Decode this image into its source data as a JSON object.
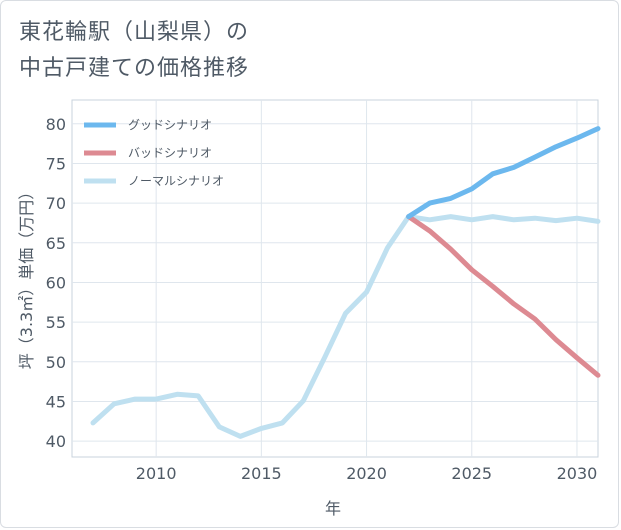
{
  "title": {
    "line1": "東花輪駅（山梨県）の",
    "line2": "中古戸建ての価格推移"
  },
  "chart_data": {
    "type": "line",
    "xlabel": "年",
    "ylabel": "坪（3.3㎡）単価（万円）",
    "xlim": [
      2006,
      2031
    ],
    "ylim": [
      38,
      83
    ],
    "xticks": [
      2010,
      2015,
      2020,
      2025,
      2030
    ],
    "yticks": [
      40,
      45,
      50,
      55,
      60,
      65,
      70,
      75,
      80
    ],
    "grid": true,
    "legend_position": "top-left",
    "series": [
      {
        "name": "グッドシナリオ",
        "color": "#6cb8ee",
        "points": [
          [
            2022,
            68.3
          ],
          [
            2023,
            70.0
          ],
          [
            2024,
            70.6
          ],
          [
            2025,
            71.8
          ],
          [
            2026,
            73.7
          ],
          [
            2027,
            74.5
          ],
          [
            2028,
            75.8
          ],
          [
            2029,
            77.1
          ],
          [
            2030,
            78.2
          ],
          [
            2031,
            79.4
          ]
        ]
      },
      {
        "name": "バッドシナリオ",
        "color": "#dd8a92",
        "points": [
          [
            2022,
            68.3
          ],
          [
            2023,
            66.5
          ],
          [
            2024,
            64.2
          ],
          [
            2025,
            61.6
          ],
          [
            2026,
            59.5
          ],
          [
            2027,
            57.3
          ],
          [
            2028,
            55.4
          ],
          [
            2029,
            52.8
          ],
          [
            2030,
            50.5
          ],
          [
            2031,
            48.3
          ]
        ]
      },
      {
        "name": "ノーマルシナリオ",
        "color": "#bfe0f0",
        "points": [
          [
            2007,
            42.3
          ],
          [
            2008,
            44.7
          ],
          [
            2009,
            45.3
          ],
          [
            2010,
            45.3
          ],
          [
            2011,
            45.9
          ],
          [
            2012,
            45.7
          ],
          [
            2013,
            41.8
          ],
          [
            2014,
            40.6
          ],
          [
            2015,
            41.6
          ],
          [
            2016,
            42.3
          ],
          [
            2017,
            45.1
          ],
          [
            2018,
            50.5
          ],
          [
            2019,
            56.1
          ],
          [
            2020,
            58.8
          ],
          [
            2021,
            64.4
          ],
          [
            2022,
            68.3
          ],
          [
            2023,
            67.9
          ],
          [
            2024,
            68.3
          ],
          [
            2025,
            67.9
          ],
          [
            2026,
            68.3
          ],
          [
            2027,
            67.9
          ],
          [
            2028,
            68.1
          ],
          [
            2029,
            67.8
          ],
          [
            2030,
            68.1
          ],
          [
            2031,
            67.7
          ]
        ]
      }
    ]
  }
}
